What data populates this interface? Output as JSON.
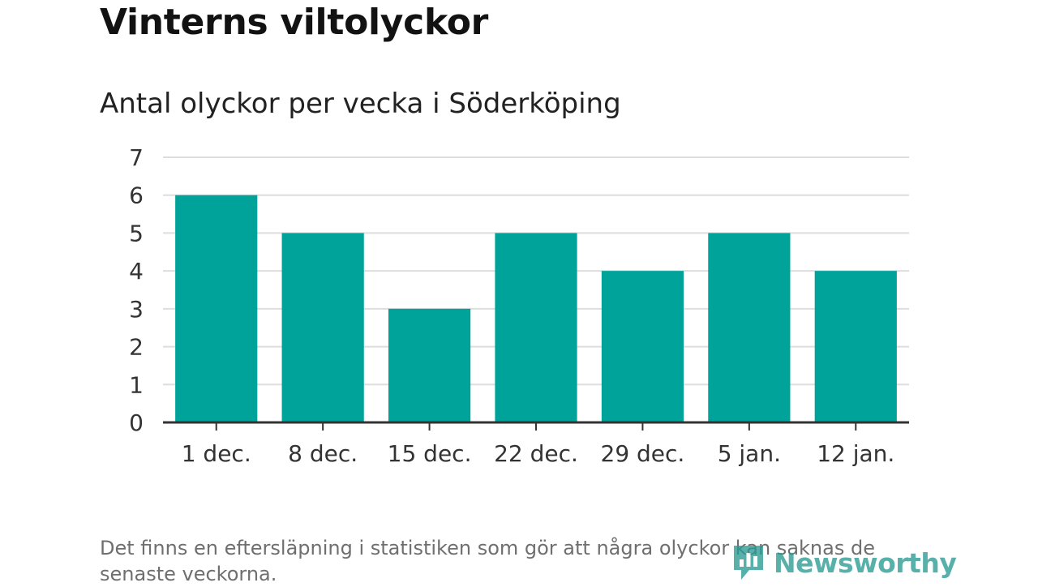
{
  "title": "Vinterns viltolyckor",
  "subtitle": "Antal olyckor per vecka i Söderköping",
  "footnote": "Det finns en eftersläpning i statistiken som gör att några olyckor kan saknas de senaste veckorna.",
  "brand": {
    "name": "Newsworthy",
    "color": "#2a9a93"
  },
  "colors": {
    "bar": "#00a39a",
    "grid": "#dddddd",
    "axis": "#333333"
  },
  "chart_data": {
    "type": "bar",
    "title": "Antal olyckor per vecka i Söderköping",
    "xlabel": "",
    "ylabel": "",
    "categories": [
      "1 dec.",
      "8 dec.",
      "15 dec.",
      "22 dec.",
      "29 dec.",
      "5 jan.",
      "12 jan."
    ],
    "values": [
      6,
      5,
      3,
      5,
      4,
      5,
      4
    ],
    "ylim": [
      0,
      7
    ],
    "yticks": [
      0,
      1,
      2,
      3,
      4,
      5,
      6,
      7
    ],
    "grid": true,
    "legend": "none"
  }
}
